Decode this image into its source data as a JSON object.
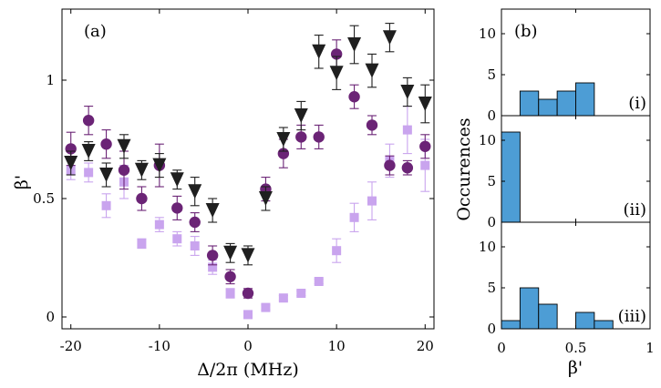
{
  "panel_a": {
    "label": "(a)",
    "xlabel": "Δ/2π (MHz)",
    "ylabel": "β'",
    "xticks": [
      "-20",
      "-10",
      "0",
      "10",
      "20"
    ],
    "yticks": [
      "0",
      "0.5",
      "1"
    ]
  },
  "panel_b": {
    "label": "(b)",
    "xlabel": "β'",
    "ylabel": "Occurences",
    "xticks": [
      "0",
      "0.5",
      "1"
    ],
    "yticks": [
      "0",
      "5",
      "10"
    ],
    "sub_labels": [
      "(i)",
      "(ii)",
      "(iii)"
    ]
  },
  "chart_data": [
    {
      "type": "scatter",
      "panel": "(a)",
      "xlabel": "Δ/2π (MHz)",
      "ylabel": "β'",
      "xlim": [
        -21,
        21
      ],
      "ylim": [
        -0.05,
        1.3
      ],
      "xticks": [
        -20,
        -10,
        0,
        10,
        20
      ],
      "yticks": [
        0,
        0.5,
        1
      ],
      "grid": false,
      "series": [
        {
          "marker": "triangle-down",
          "color": "#1f1f1f",
          "x": [
            -20,
            -18,
            -16,
            -14,
            -12,
            -10,
            -8,
            -6,
            -4,
            -2,
            0,
            2,
            4,
            6,
            8,
            10,
            12,
            14,
            16,
            18,
            20
          ],
          "y": [
            0.65,
            0.7,
            0.6,
            0.72,
            0.62,
            0.64,
            0.58,
            0.53,
            0.45,
            0.27,
            0.26,
            0.5,
            0.75,
            0.85,
            1.12,
            1.03,
            1.15,
            1.04,
            1.18,
            0.95,
            0.9
          ],
          "err": [
            0.05,
            0.04,
            0.05,
            0.05,
            0.04,
            0.05,
            0.04,
            0.06,
            0.05,
            0.04,
            0.04,
            0.05,
            0.05,
            0.06,
            0.07,
            0.07,
            0.08,
            0.07,
            0.06,
            0.06,
            0.08
          ]
        },
        {
          "marker": "circle",
          "color": "#6b2476",
          "x": [
            -20,
            -18,
            -16,
            -14,
            -12,
            -10,
            -8,
            -6,
            -4,
            -2,
            0,
            2,
            4,
            6,
            8,
            10,
            12,
            14,
            16,
            18,
            20
          ],
          "y": [
            0.71,
            0.83,
            0.73,
            0.62,
            0.5,
            0.64,
            0.46,
            0.4,
            0.26,
            0.17,
            0.1,
            0.54,
            0.69,
            0.76,
            0.76,
            1.11,
            0.93,
            0.81,
            0.64,
            0.63,
            0.72
          ],
          "err": [
            0.07,
            0.06,
            0.06,
            0.08,
            0.05,
            0.09,
            0.05,
            0.04,
            0.04,
            0.03,
            0.02,
            0.05,
            0.06,
            0.05,
            0.05,
            0.06,
            0.05,
            0.04,
            0.04,
            0.03,
            0.05
          ]
        },
        {
          "marker": "square",
          "color": "#c9a4ee",
          "x": [
            -20,
            -18,
            -16,
            -14,
            -12,
            -10,
            -8,
            -6,
            -4,
            -2,
            0,
            2,
            4,
            6,
            8,
            10,
            12,
            14,
            16,
            18,
            20
          ],
          "y": [
            0.62,
            0.61,
            0.47,
            0.57,
            0.31,
            0.39,
            0.33,
            0.3,
            0.21,
            0.1,
            0.01,
            0.04,
            0.08,
            0.1,
            0.15,
            0.28,
            0.42,
            0.49,
            0.66,
            0.79,
            0.64
          ],
          "err": [
            0.04,
            0.04,
            0.05,
            0.07,
            0.02,
            0.03,
            0.03,
            0.04,
            0.03,
            0.02,
            0.01,
            0.01,
            0.01,
            0.01,
            0.01,
            0.05,
            0.06,
            0.08,
            0.07,
            0.1,
            0.11
          ]
        }
      ]
    },
    {
      "type": "bar",
      "panel": "(b)",
      "sub_panel": "(i)",
      "bin_width": 0.125,
      "bin_starts": [
        0.125,
        0.25,
        0.375,
        0.5
      ],
      "values": [
        3,
        2,
        3,
        4
      ],
      "xlim": [
        0,
        1
      ],
      "ylim": [
        0,
        13
      ]
    },
    {
      "type": "bar",
      "panel": "(b)",
      "sub_panel": "(ii)",
      "bin_width": 0.125,
      "bin_starts": [
        0
      ],
      "values": [
        11
      ],
      "xlim": [
        0,
        1
      ],
      "ylim": [
        0,
        13
      ]
    },
    {
      "type": "bar",
      "panel": "(b)",
      "sub_panel": "(iii)",
      "xlabel": "β'",
      "bin_width": 0.125,
      "bin_starts": [
        0,
        0.125,
        0.25,
        0.5,
        0.625
      ],
      "values": [
        1,
        5,
        3,
        2,
        1
      ],
      "xlim": [
        0,
        1
      ],
      "ylim": [
        0,
        13
      ]
    }
  ]
}
